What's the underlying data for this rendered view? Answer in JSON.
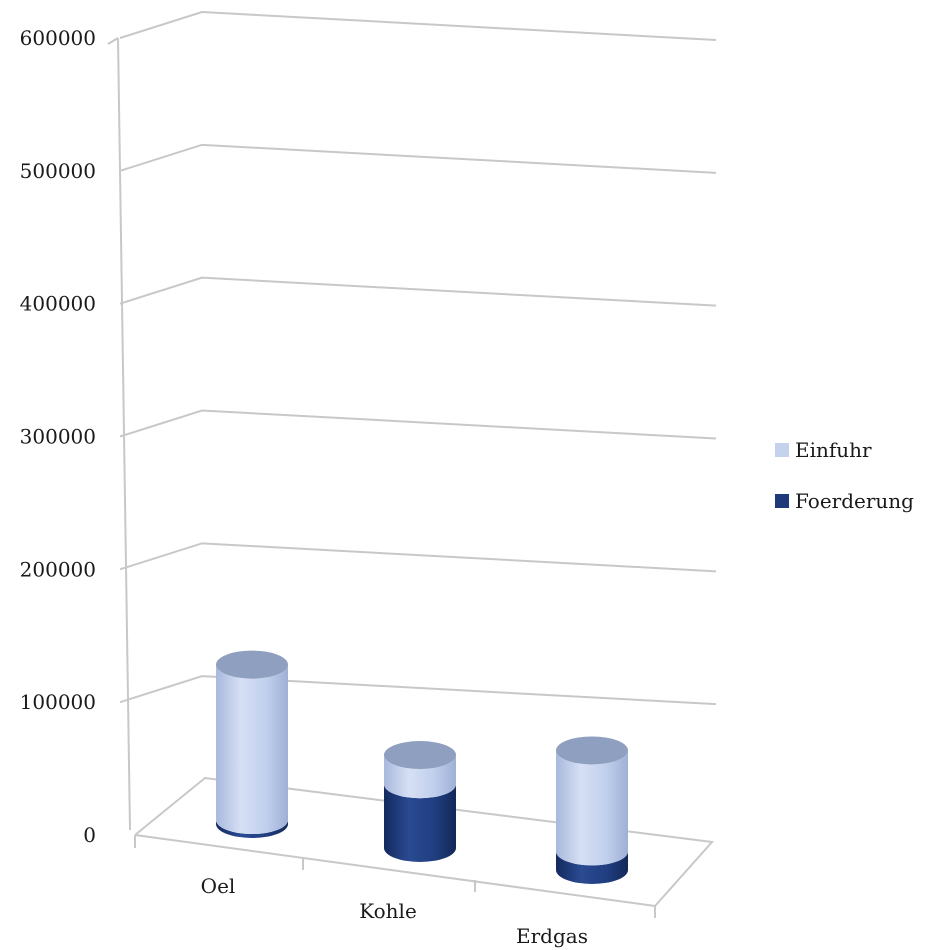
{
  "chart_data": {
    "type": "bar",
    "style": "3d-stacked-cylinder",
    "categories": [
      "Oel",
      "Kohle",
      "Erdgas"
    ],
    "series": [
      {
        "name": "Foerderung",
        "values": [
          3000,
          48000,
          14000
        ],
        "color": "#1f3a7a"
      },
      {
        "name": "Einfuhr",
        "values": [
          117000,
          22000,
          76000
        ],
        "color": "#c4d2ee"
      }
    ],
    "ylim": [
      0,
      600000
    ],
    "yticks": [
      "0",
      "100000",
      "200000",
      "300000",
      "400000",
      "500000",
      "600000"
    ],
    "grid": true,
    "legend_position": "right",
    "title": "",
    "xlabel": "",
    "ylabel": ""
  }
}
